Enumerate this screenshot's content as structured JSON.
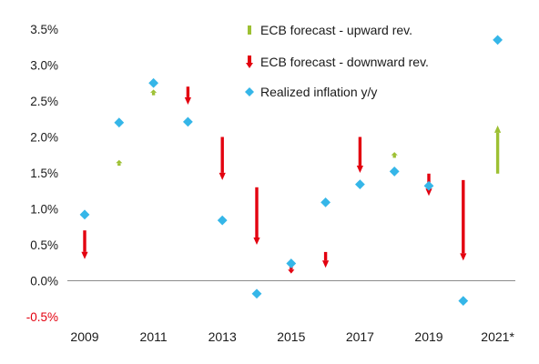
{
  "chart_data": {
    "type": "scatter",
    "title": "",
    "xlabel": "",
    "ylabel": "",
    "ylim": [
      -0.5,
      3.5
    ],
    "y_tick_labels": [
      "-0.5%",
      "0.0%",
      "0.5%",
      "1.0%",
      "1.5%",
      "2.0%",
      "2.5%",
      "3.0%",
      "3.5%"
    ],
    "x_categories": [
      "2009",
      "2010",
      "2011",
      "2012",
      "2013",
      "2014",
      "2015",
      "2016",
      "2017",
      "2018",
      "2019",
      "2020",
      "2021*"
    ],
    "x_tick_labels": [
      "2009",
      "2011",
      "2013",
      "2015",
      "2017",
      "2019",
      "2021*"
    ],
    "grid": false,
    "legend_position": "top-right",
    "legend": [
      {
        "label": "ECB forecast - upward rev.",
        "symbol": "up-arrow",
        "color": "#9dc033"
      },
      {
        "label": "ECB forecast - downward rev.",
        "symbol": "down-arrow",
        "color": "#e3000f"
      },
      {
        "label": "Realized inflation y/y",
        "symbol": "diamond",
        "color": "#35b6e8"
      }
    ],
    "series": [
      {
        "name": "ECB forecast - upward rev.",
        "color": "#9dc033",
        "revisions": [
          {
            "x": "2010",
            "from": 1.6,
            "to": 1.68
          },
          {
            "x": "2011",
            "from": 2.58,
            "to": 2.66
          },
          {
            "x": "2018",
            "from": 1.71,
            "to": 1.79
          },
          {
            "x": "2021*",
            "from": 1.49,
            "to": 2.16
          }
        ]
      },
      {
        "name": "ECB forecast - downward rev.",
        "color": "#e3000f",
        "revisions": [
          {
            "x": "2009",
            "from": 0.7,
            "to": 0.3
          },
          {
            "x": "2012",
            "from": 2.7,
            "to": 2.45
          },
          {
            "x": "2013",
            "from": 2.0,
            "to": 1.4
          },
          {
            "x": "2014",
            "from": 1.3,
            "to": 0.5
          },
          {
            "x": "2015",
            "from": 0.2,
            "to": 0.1
          },
          {
            "x": "2016",
            "from": 0.4,
            "to": 0.18
          },
          {
            "x": "2017",
            "from": 2.0,
            "to": 1.5
          },
          {
            "x": "2019",
            "from": 1.49,
            "to": 1.18
          },
          {
            "x": "2020",
            "from": 1.4,
            "to": 0.28
          }
        ]
      },
      {
        "name": "Realized inflation y/y",
        "color": "#35b6e8",
        "points": [
          {
            "x": "2009",
            "y": 0.92
          },
          {
            "x": "2010",
            "y": 2.2
          },
          {
            "x": "2011",
            "y": 2.75
          },
          {
            "x": "2012",
            "y": 2.21
          },
          {
            "x": "2013",
            "y": 0.84
          },
          {
            "x": "2014",
            "y": -0.18
          },
          {
            "x": "2015",
            "y": 0.24
          },
          {
            "x": "2016",
            "y": 1.09
          },
          {
            "x": "2017",
            "y": 1.34
          },
          {
            "x": "2018",
            "y": 1.52
          },
          {
            "x": "2019",
            "y": 1.32
          },
          {
            "x": "2020",
            "y": -0.28
          },
          {
            "x": "2021*",
            "y": 3.35
          }
        ]
      }
    ]
  }
}
